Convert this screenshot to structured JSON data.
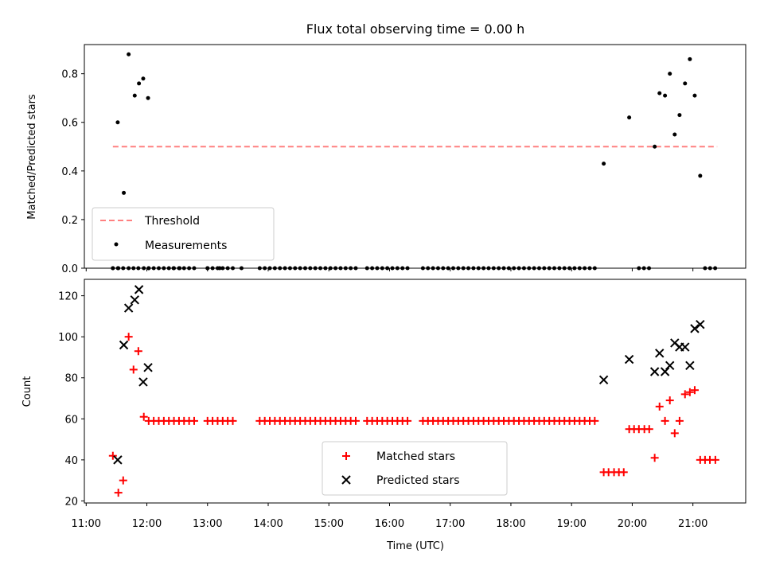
{
  "figure_title": "Flux total observing time = 0.00 h",
  "chart_data": [
    {
      "type": "scatter",
      "title": "Flux total observing time = 0.00 h",
      "xlabel": "",
      "ylabel": "Matched/Predicted stars",
      "xlim_hours": [
        10.97,
        21.87
      ],
      "ylim": [
        0,
        0.92
      ],
      "yticks": [
        0.0,
        0.2,
        0.4,
        0.6,
        0.8
      ],
      "ytick_labels": [
        "0.0",
        "0.2",
        "0.4",
        "0.6",
        "0.8"
      ],
      "threshold": {
        "name": "Threshold",
        "value": 0.5,
        "x_range_hours": [
          11.44,
          21.4
        ],
        "color": "#ff8080",
        "style": "dashed"
      },
      "legend": {
        "position": "lower left",
        "entries": [
          "Threshold",
          "Measurements"
        ]
      },
      "series": [
        {
          "name": "Measurements",
          "color": "#000000",
          "marker": "dot",
          "x_hours": [
            11.44,
            11.53,
            11.61,
            11.7,
            11.78,
            11.86,
            11.95,
            12.03,
            12.44,
            12.54,
            13.0,
            13.2,
            13.56,
            11.52,
            11.62,
            11.7,
            11.8,
            11.87,
            11.94,
            12.02,
            19.53,
            19.95,
            20.37,
            20.45,
            20.54,
            20.62,
            20.7,
            20.78,
            20.87,
            20.95,
            21.03,
            21.12
          ],
          "y": [
            0,
            0,
            0,
            0,
            0,
            0,
            0,
            0,
            0,
            0,
            0,
            0,
            0,
            0.6,
            0.31,
            0.88,
            0.71,
            0.76,
            0.78,
            0.7,
            0.43,
            0.62,
            0.5,
            0.72,
            0.71,
            0.8,
            0.55,
            0.63,
            0.76,
            0.86,
            0.71,
            0.38
          ]
        }
      ],
      "zero_measurements": {
        "x_ranges_hours": [
          [
            11.44,
            11.53
          ],
          [
            12.03,
            12.78
          ],
          [
            13.0,
            13.47
          ],
          [
            13.86,
            15.46
          ],
          [
            15.63,
            16.3
          ],
          [
            16.55,
            19.45
          ],
          [
            20.11,
            20.28
          ],
          [
            21.2,
            21.37
          ]
        ],
        "y": 0
      }
    },
    {
      "type": "scatter",
      "xlabel": "Time (UTC)",
      "ylabel": "Count",
      "xlim_hours": [
        10.97,
        21.87
      ],
      "ylim": [
        19,
        128
      ],
      "yticks": [
        20,
        40,
        60,
        80,
        100,
        120
      ],
      "ytick_labels": [
        "20",
        "40",
        "60",
        "80",
        "100",
        "120"
      ],
      "xticks_hours": [
        11,
        12,
        13,
        14,
        15,
        16,
        17,
        18,
        19,
        20,
        21
      ],
      "xtick_labels": [
        "11:00",
        "12:00",
        "13:00",
        "14:00",
        "15:00",
        "16:00",
        "17:00",
        "18:00",
        "19:00",
        "20:00",
        "21:00"
      ],
      "legend": {
        "position": "lower center",
        "entries": [
          "Matched stars",
          "Predicted stars"
        ]
      },
      "series": [
        {
          "name": "Matched stars",
          "color": "#ff0000",
          "marker": "plus",
          "x_hours": [
            11.44,
            11.53,
            11.61,
            11.7,
            11.78,
            11.86,
            11.95,
            19.53,
            19.61,
            19.7,
            19.78,
            19.86,
            19.95,
            20.03,
            20.11,
            20.2,
            20.28,
            20.37,
            20.45,
            20.54,
            20.62,
            20.7,
            20.78,
            20.87,
            20.95,
            21.03,
            21.12,
            21.2,
            21.28,
            21.37
          ],
          "y": [
            42,
            24,
            30,
            100,
            84,
            93,
            61,
            34,
            34,
            34,
            34,
            34,
            55,
            55,
            55,
            55,
            55,
            41,
            66,
            59,
            69,
            53,
            59,
            72,
            73,
            74,
            40,
            40,
            40,
            40
          ]
        },
        {
          "name": "Predicted stars",
          "color": "#000000",
          "marker": "x",
          "x_hours": [
            11.52,
            11.62,
            11.7,
            11.8,
            11.87,
            11.94,
            12.02,
            19.53,
            19.95,
            20.37,
            20.45,
            20.54,
            20.62,
            20.7,
            20.78,
            20.87,
            20.95,
            21.03,
            21.12
          ],
          "y": [
            40,
            96,
            114,
            118,
            123,
            78,
            85,
            79,
            89,
            83,
            92,
            83,
            86,
            97,
            95,
            95,
            86,
            104,
            106
          ]
        }
      ],
      "matched_constant_runs": {
        "y": 59,
        "x_ranges_hours": [
          [
            12.03,
            12.78
          ],
          [
            13.0,
            13.47
          ],
          [
            13.86,
            15.46
          ],
          [
            15.63,
            16.3
          ],
          [
            16.55,
            19.45
          ]
        ]
      }
    }
  ]
}
